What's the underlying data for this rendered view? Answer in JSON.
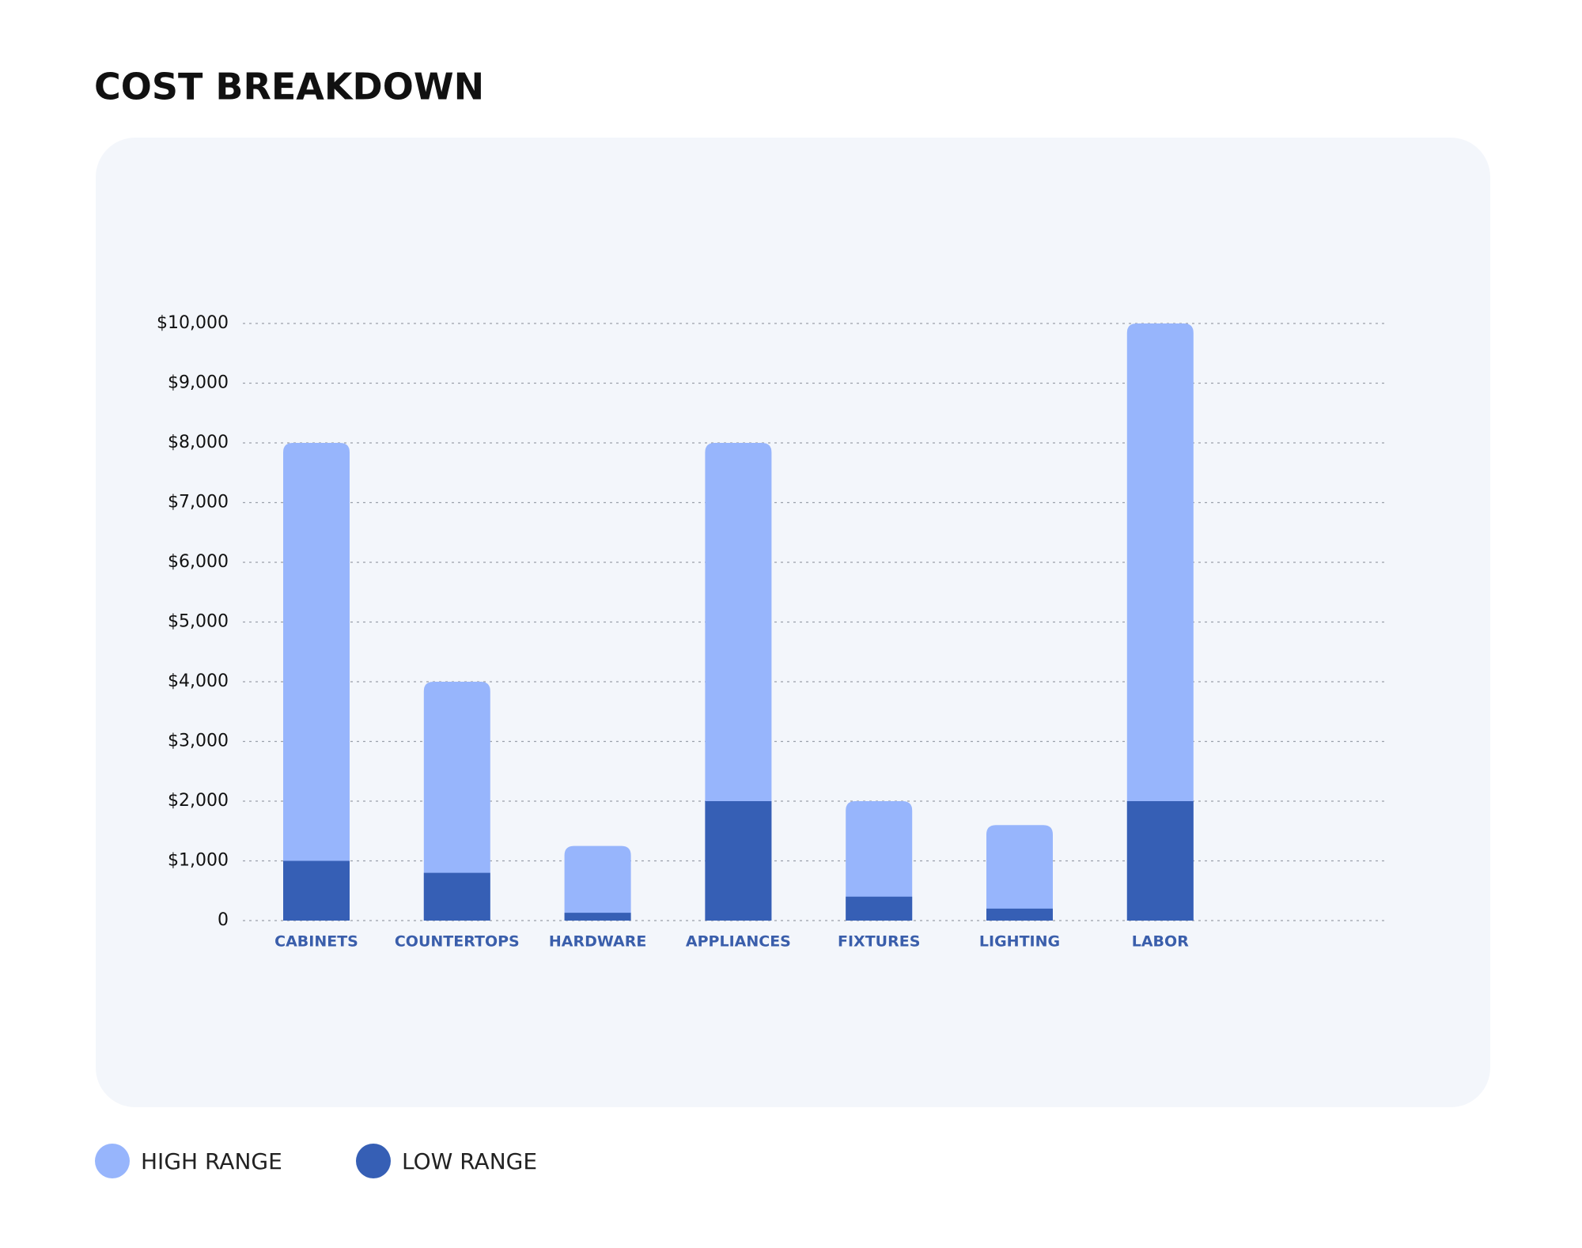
{
  "chart_data": {
    "type": "bar",
    "title": "COST BREAKDOWN",
    "categories": [
      "CABINETS",
      "COUNTERTOPS",
      "HARDWARE",
      "APPLIANCES",
      "FIXTURES",
      "LIGHTING",
      "LABOR"
    ],
    "series": [
      {
        "name": "HIGH RANGE",
        "color": "#97b5fc",
        "values": [
          8000,
          4000,
          1250,
          8000,
          2000,
          1600,
          10000
        ]
      },
      {
        "name": "LOW RANGE",
        "color": "#365fb5",
        "values": [
          1000,
          800,
          130,
          2000,
          400,
          200,
          2000
        ]
      }
    ],
    "ylim": [
      0,
      10000
    ],
    "yticks": [
      0,
      {
        "value": 1000,
        "label": "$1,000"
      },
      {
        "value": 2000,
        "label": "$2,000"
      },
      {
        "value": 3000,
        "label": "$3,000"
      },
      {
        "value": 4000,
        "label": "$4,000"
      },
      {
        "value": 5000,
        "label": "$5,000"
      },
      {
        "value": 6000,
        "label": "$6,000"
      },
      {
        "value": 7000,
        "label": "$7,000"
      },
      {
        "value": 8000,
        "label": "$8,000"
      },
      {
        "value": 9000,
        "label": "$9,000"
      },
      {
        "value": 10000,
        "label": "$10,000"
      }
    ],
    "grid": true
  }
}
